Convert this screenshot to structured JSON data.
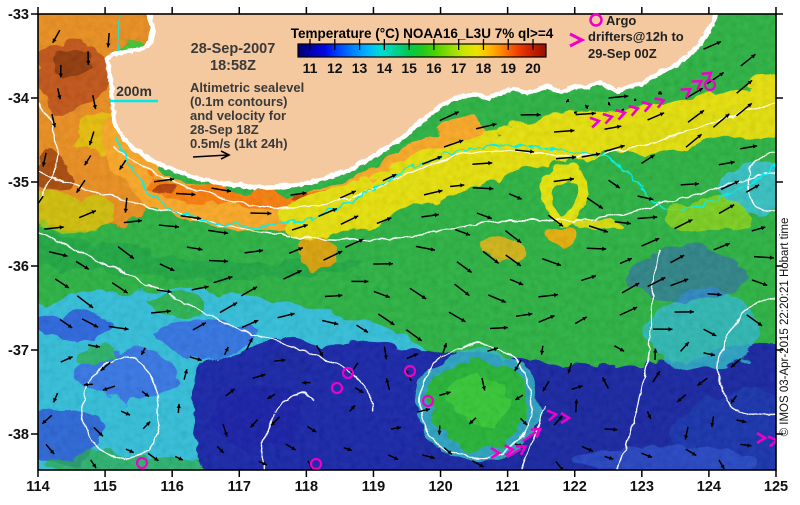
{
  "figure": {
    "date_label": "28-Sep-2007",
    "time_label": "18:58Z",
    "altimetry_note_lines": [
      "Altimetric sealevel",
      "(0.1m contours)",
      "and velocity for",
      "28-Sep 18Z",
      "0.5m/s (1kt 24h)"
    ],
    "bathymetry_label": "200m",
    "copyright": "© IMOS 03-Apr-2015 22:20:21 Hobart time"
  },
  "colorbar": {
    "title": "Temperature (°C) NOAA16_L3U 7% ql>=4",
    "tick_labels": [
      "11",
      "12",
      "13",
      "14",
      "15",
      "16",
      "17",
      "18",
      "19",
      "20"
    ],
    "stops": [
      "#00006e",
      "#0000b4",
      "#0008e1",
      "#0048ff",
      "#0082ff",
      "#00b4ff",
      "#00dcd2",
      "#00d29b",
      "#00c850",
      "#1ec81e",
      "#50d200",
      "#8cdc00",
      "#c8e600",
      "#f0e100",
      "#ffb400",
      "#ff7800",
      "#f03c00",
      "#c81e00",
      "#961000"
    ]
  },
  "argo_legend": {
    "line1": "Argo",
    "line2": "drifters@12h to",
    "line3": "29-Sep 00Z"
  },
  "axes": {
    "x_tick_labels": [
      "114",
      "115",
      "116",
      "117",
      "118",
      "119",
      "120",
      "121",
      "122",
      "123",
      "124",
      "125"
    ],
    "y_tick_labels": [
      "-33",
      "-34",
      "-35",
      "-36",
      "-37",
      "-38"
    ]
  },
  "colors": {
    "land": "#f5c9a0",
    "ssh_contour": "#ffffff",
    "bathy_contour": "#00f0f0",
    "drifter_magenta": "#ee00cc",
    "velocity_arrow": "#000000",
    "frame": "#000000"
  }
}
